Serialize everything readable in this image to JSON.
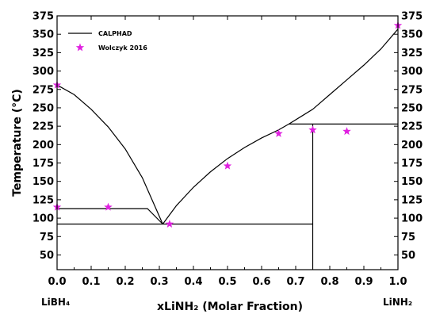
{
  "chart_data": {
    "type": "line",
    "xlabel": "xLiNH₂ (Molar Fraction)",
    "ylabel": "Temperature (°C)",
    "xlim": [
      0,
      1.0
    ],
    "ylim": [
      30,
      375
    ],
    "x_ticks": [
      "0.0",
      "0.1",
      "0.2",
      "0.3",
      "0.4",
      "0.5",
      "0.6",
      "0.7",
      "0.8",
      "0.9",
      "1.0"
    ],
    "y_ticks": [
      "50",
      "75",
      "100",
      "125",
      "150",
      "175",
      "200",
      "225",
      "250",
      "275",
      "300",
      "325",
      "350",
      "375"
    ],
    "end_labels": {
      "left": "LiBH₄",
      "right": "LiNH₂"
    },
    "legend_position": "top-left",
    "grid": false,
    "series": [
      {
        "name": "CALPHAD",
        "kind": "line",
        "color": "#000000",
        "segments": [
          [
            [
              0.0,
              281
            ],
            [
              0.05,
              268
            ],
            [
              0.1,
              248
            ],
            [
              0.15,
              224
            ],
            [
              0.2,
              194
            ],
            [
              0.25,
              155
            ],
            [
              0.31,
              92
            ]
          ],
          [
            [
              0.31,
              92
            ],
            [
              0.35,
              117
            ],
            [
              0.4,
              142
            ],
            [
              0.45,
              163
            ],
            [
              0.5,
              181
            ],
            [
              0.55,
              196
            ],
            [
              0.6,
              209
            ],
            [
              0.65,
              220
            ],
            [
              0.68,
              228
            ]
          ],
          [
            [
              0.68,
              228
            ],
            [
              0.75,
              248
            ],
            [
              0.8,
              268
            ],
            [
              0.85,
              288
            ],
            [
              0.9,
              308
            ],
            [
              0.95,
              330
            ],
            [
              1.0,
              357
            ]
          ],
          [
            [
              0.0,
              113
            ],
            [
              0.265,
              113
            ],
            [
              0.31,
              92
            ]
          ],
          [
            [
              0.0,
              92
            ],
            [
              0.75,
              92
            ]
          ],
          [
            [
              0.75,
              30
            ],
            [
              0.75,
              228
            ]
          ],
          [
            [
              0.68,
              228
            ],
            [
              1.0,
              228
            ]
          ]
        ]
      },
      {
        "name": "Wolczyk 2016",
        "kind": "scatter",
        "marker": "star",
        "color": "#e020e0",
        "points": [
          [
            0.0,
            281
          ],
          [
            0.0,
            115
          ],
          [
            0.15,
            115
          ],
          [
            0.33,
            92
          ],
          [
            0.5,
            171
          ],
          [
            0.65,
            215
          ],
          [
            0.75,
            220
          ],
          [
            0.85,
            218
          ],
          [
            1.0,
            362
          ]
        ]
      }
    ]
  }
}
